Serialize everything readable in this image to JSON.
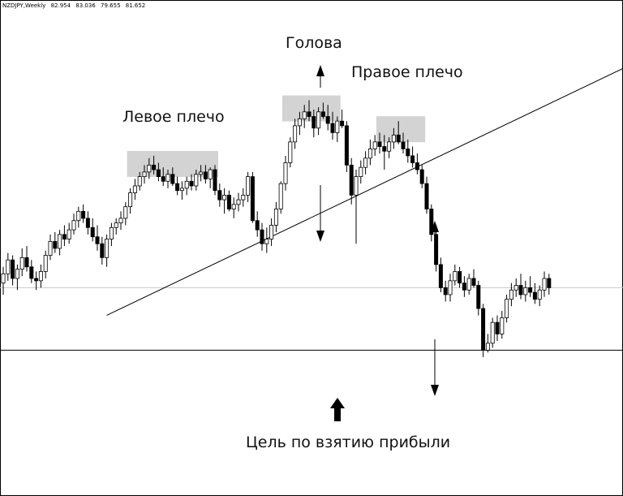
{
  "header": {
    "symbol": "NZDJPY,Weekly",
    "open": "82.954",
    "high": "83.036",
    "low": "79.655",
    "close": "81.652"
  },
  "annotations": {
    "left_shoulder": "Левое плечо",
    "head": "Голова",
    "right_shoulder": "Правое плечо",
    "target": "Цель по взятию прибыли"
  },
  "colors": {
    "up": "#ffffff",
    "down": "#000000",
    "outline": "#000000",
    "highlight": "#d3d3d3"
  },
  "chart_data": {
    "type": "candlestick",
    "symbol": "NZDJPY",
    "timeframe": "Weekly",
    "grid": false,
    "pattern": "head-and-shoulders",
    "ylim": [
      78.5,
      88.5
    ],
    "current_price": 83.6,
    "target_level": 80.9,
    "neckline": {
      "from": {
        "bar": 22,
        "price": 83.6
      },
      "to": {
        "bar": 135,
        "price": 86.9
      }
    },
    "values": [
      [
        0,
        83.8,
        84.5,
        83.3,
        84.2
      ],
      [
        1,
        84.2,
        85.1,
        83.9,
        84.8
      ],
      [
        2,
        84.8,
        85.0,
        83.7,
        84.0
      ],
      [
        3,
        84.0,
        84.6,
        83.5,
        84.4
      ],
      [
        4,
        84.4,
        85.3,
        84.1,
        84.9
      ],
      [
        5,
        84.9,
        85.4,
        84.3,
        84.5
      ],
      [
        6,
        84.5,
        84.8,
        83.8,
        84.0
      ],
      [
        7,
        84.0,
        84.3,
        83.5,
        83.9
      ],
      [
        8,
        83.9,
        84.6,
        83.6,
        84.3
      ],
      [
        9,
        84.3,
        85.2,
        84.0,
        85.0
      ],
      [
        10,
        85.0,
        85.9,
        84.8,
        85.6
      ],
      [
        11,
        85.6,
        86.0,
        85.1,
        85.3
      ],
      [
        12,
        85.3,
        86.1,
        85.0,
        85.9
      ],
      [
        13,
        85.9,
        86.3,
        85.4,
        85.7
      ],
      [
        14,
        85.7,
        86.4,
        85.5,
        86.1
      ],
      [
        15,
        86.1,
        86.8,
        85.9,
        86.5
      ],
      [
        16,
        86.5,
        87.1,
        86.2,
        86.9
      ],
      [
        17,
        86.9,
        87.2,
        86.4,
        86.6
      ],
      [
        18,
        86.6,
        86.9,
        85.9,
        86.2
      ],
      [
        19,
        86.2,
        86.6,
        85.6,
        85.8
      ],
      [
        20,
        85.8,
        86.3,
        85.2,
        85.5
      ],
      [
        21,
        85.5,
        85.8,
        84.6,
        84.9
      ],
      [
        22,
        84.9,
        85.9,
        84.5,
        85.7
      ],
      [
        23,
        85.7,
        86.4,
        85.4,
        86.2
      ],
      [
        24,
        86.2,
        86.6,
        85.9,
        86.4
      ],
      [
        25,
        86.4,
        86.9,
        86.1,
        86.6
      ],
      [
        26,
        86.6,
        87.3,
        86.3,
        87.1
      ],
      [
        27,
        87.1,
        87.9,
        86.8,
        87.7
      ],
      [
        28,
        87.7,
        88.3,
        87.4,
        88.0
      ],
      [
        29,
        88.0,
        88.6,
        87.8,
        88.4
      ],
      [
        30,
        88.4,
        88.9,
        88.1,
        88.6
      ],
      [
        31,
        88.6,
        89.2,
        88.3,
        88.9
      ],
      [
        32,
        88.9,
        89.3,
        88.5,
        88.7
      ],
      [
        33,
        88.7,
        89.0,
        88.2,
        88.4
      ],
      [
        34,
        88.4,
        88.8,
        88.0,
        88.2
      ],
      [
        35,
        88.2,
        88.7,
        87.9,
        88.5
      ],
      [
        36,
        88.5,
        88.8,
        88.0,
        88.1
      ],
      [
        37,
        88.1,
        88.4,
        87.6,
        87.8
      ],
      [
        38,
        87.8,
        88.2,
        87.4,
        87.9
      ],
      [
        39,
        87.9,
        88.4,
        87.6,
        88.2
      ],
      [
        40,
        88.2,
        88.5,
        87.8,
        88.0
      ],
      [
        41,
        88.0,
        88.7,
        87.8,
        88.5
      ],
      [
        42,
        88.5,
        88.9,
        88.2,
        88.6
      ],
      [
        43,
        88.6,
        88.9,
        88.1,
        88.3
      ],
      [
        44,
        88.3,
        88.8,
        87.9,
        88.7
      ],
      [
        45,
        88.7,
        88.9,
        87.6,
        87.8
      ],
      [
        46,
        87.8,
        88.1,
        87.1,
        87.4
      ],
      [
        47,
        87.4,
        87.9,
        86.8,
        87.6
      ],
      [
        48,
        87.6,
        87.8,
        86.9,
        87.0
      ],
      [
        49,
        87.0,
        87.5,
        86.6,
        87.2
      ],
      [
        50,
        87.2,
        87.7,
        86.9,
        87.4
      ],
      [
        51,
        87.4,
        87.9,
        87.1,
        87.6
      ],
      [
        52,
        87.6,
        88.6,
        87.3,
        88.4
      ],
      [
        53,
        88.4,
        88.6,
        86.4,
        86.5
      ],
      [
        54,
        86.5,
        86.9,
        85.8,
        86.1
      ],
      [
        55,
        86.1,
        86.4,
        85.2,
        85.5
      ],
      [
        56,
        85.5,
        86.2,
        85.1,
        85.7
      ],
      [
        57,
        85.7,
        86.6,
        85.4,
        86.3
      ],
      [
        58,
        86.3,
        87.3,
        86.0,
        87.0
      ],
      [
        59,
        87.0,
        88.2,
        86.8,
        88.1
      ],
      [
        60,
        88.1,
        89.3,
        87.8,
        89.0
      ],
      [
        61,
        89.0,
        90.1,
        88.8,
        89.9
      ],
      [
        62,
        89.9,
        90.9,
        89.6,
        90.6
      ],
      [
        63,
        90.6,
        91.2,
        90.2,
        90.9
      ],
      [
        64,
        90.9,
        91.5,
        90.5,
        91.2
      ],
      [
        65,
        91.2,
        91.7,
        90.8,
        91.0
      ],
      [
        66,
        91.0,
        91.3,
        90.1,
        90.5
      ],
      [
        67,
        90.5,
        91.4,
        90.2,
        91.2
      ],
      [
        68,
        91.2,
        91.6,
        90.9,
        91.0
      ],
      [
        69,
        91.0,
        91.5,
        90.4,
        90.7
      ],
      [
        70,
        90.7,
        91.2,
        90.0,
        90.3
      ],
      [
        71,
        90.3,
        91.0,
        89.9,
        90.8
      ],
      [
        72,
        90.8,
        91.3,
        90.5,
        90.6
      ],
      [
        73,
        90.6,
        90.8,
        88.6,
        88.9
      ],
      [
        74,
        88.9,
        89.2,
        87.2,
        87.6
      ],
      [
        75,
        87.6,
        88.7,
        85.5,
        88.4
      ],
      [
        76,
        88.4,
        89.1,
        88.1,
        88.8
      ],
      [
        77,
        88.8,
        89.5,
        88.5,
        89.2
      ],
      [
        78,
        89.2,
        90.0,
        88.9,
        89.6
      ],
      [
        79,
        89.6,
        90.2,
        89.3,
        89.9
      ],
      [
        80,
        89.9,
        90.3,
        89.4,
        89.7
      ],
      [
        81,
        89.7,
        90.2,
        88.7,
        89.5
      ],
      [
        82,
        89.5,
        90.1,
        89.2,
        89.9
      ],
      [
        83,
        89.9,
        90.5,
        89.6,
        90.2
      ],
      [
        84,
        90.2,
        90.8,
        89.8,
        89.9
      ],
      [
        85,
        89.9,
        90.3,
        89.4,
        89.6
      ],
      [
        86,
        89.6,
        90.0,
        89.0,
        89.3
      ],
      [
        87,
        89.3,
        89.7,
        88.8,
        89.0
      ],
      [
        88,
        89.0,
        89.4,
        88.5,
        88.7
      ],
      [
        89,
        88.7,
        88.9,
        87.9,
        88.1
      ],
      [
        90,
        88.1,
        88.4,
        86.8,
        87.0
      ],
      [
        91,
        87.0,
        87.2,
        85.6,
        85.9
      ],
      [
        92,
        85.9,
        86.1,
        84.3,
        84.6
      ],
      [
        93,
        84.6,
        84.9,
        83.4,
        83.6
      ],
      [
        94,
        83.6,
        83.9,
        83.0,
        83.3
      ],
      [
        95,
        83.3,
        84.2,
        83.0,
        83.9
      ],
      [
        96,
        83.9,
        84.6,
        83.7,
        84.3
      ],
      [
        97,
        84.3,
        84.5,
        83.6,
        83.8
      ],
      [
        98,
        83.8,
        84.1,
        83.2,
        83.5
      ],
      [
        99,
        83.5,
        84.2,
        83.3,
        84.0
      ],
      [
        100,
        84.0,
        84.4,
        83.6,
        83.7
      ],
      [
        101,
        83.7,
        83.9,
        82.4,
        82.7
      ],
      [
        102,
        82.7,
        82.9,
        80.6,
        80.9
      ],
      [
        103,
        80.9,
        81.6,
        80.8,
        81.2
      ],
      [
        104,
        81.2,
        82.3,
        81.0,
        82.1
      ],
      [
        105,
        82.1,
        82.4,
        81.3,
        81.6
      ],
      [
        106,
        81.6,
        82.6,
        81.4,
        82.3
      ],
      [
        107,
        82.3,
        83.3,
        82.1,
        83.1
      ],
      [
        108,
        83.1,
        83.8,
        82.8,
        83.5
      ],
      [
        109,
        83.5,
        84.0,
        83.2,
        83.7
      ],
      [
        110,
        83.7,
        84.2,
        83.1,
        83.3
      ],
      [
        111,
        83.3,
        83.9,
        83.0,
        83.6
      ],
      [
        112,
        83.6,
        84.1,
        83.2,
        83.4
      ],
      [
        113,
        83.4,
        83.8,
        82.9,
        83.1
      ],
      [
        114,
        83.1,
        83.7,
        82.8,
        83.5
      ],
      [
        115,
        83.5,
        84.3,
        83.2,
        84.0
      ],
      [
        116,
        84.0,
        84.2,
        83.3,
        83.6
      ]
    ]
  }
}
